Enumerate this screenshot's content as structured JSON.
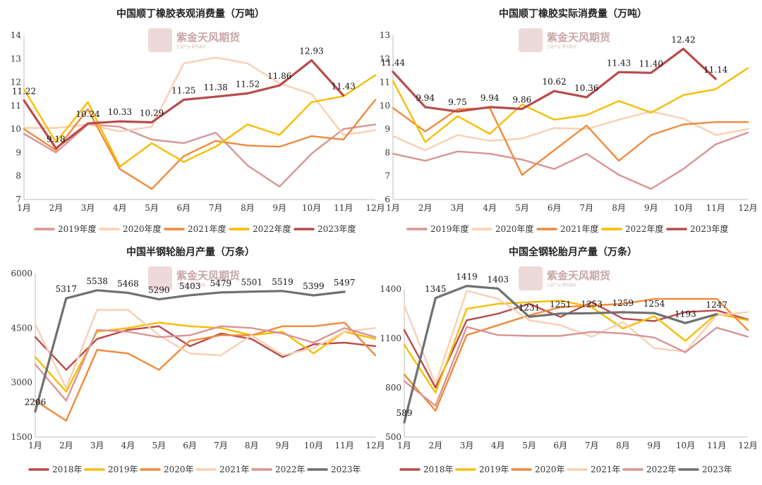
{
  "watermark": {
    "text": "紫金天风期货",
    "subtext": "立足产业  研究驱动"
  },
  "chart_data": [
    {
      "type": "line",
      "title": "中国顺丁橡胶表观消费量（万吨）",
      "categories": [
        "1月",
        "2月",
        "3月",
        "4月",
        "5月",
        "6月",
        "7月",
        "8月",
        "9月",
        "10月",
        "11月",
        "12月"
      ],
      "ylim": [
        7,
        14
      ],
      "yticks": [
        7,
        8,
        9,
        10,
        11,
        12,
        13,
        14
      ],
      "grid": false,
      "legend": "bottom",
      "series": [
        {
          "name": "2019年度",
          "color": "#d99494",
          "values": [
            9.8,
            9.0,
            10.2,
            10.1,
            9.55,
            9.4,
            9.85,
            8.45,
            7.55,
            8.95,
            10.0,
            10.2
          ]
        },
        {
          "name": "2020年度",
          "color": "#f8cfb4",
          "values": [
            10.05,
            10.05,
            10.2,
            9.9,
            10.1,
            12.8,
            13.05,
            12.8,
            11.95,
            11.5,
            9.75,
            9.95
          ]
        },
        {
          "name": "2021年度",
          "color": "#f08a3c",
          "values": [
            10.0,
            9.1,
            10.85,
            8.3,
            7.45,
            8.85,
            9.5,
            9.3,
            9.25,
            9.7,
            9.55,
            11.25
          ]
        },
        {
          "name": "2022年度",
          "color": "#f7bd00",
          "values": [
            11.7,
            9.45,
            11.15,
            8.4,
            9.4,
            8.6,
            9.25,
            10.2,
            9.75,
            11.15,
            11.4,
            12.3
          ]
        },
        {
          "name": "2023年度",
          "color": "#b94a4a",
          "values": [
            11.22,
            9.18,
            10.24,
            10.33,
            10.29,
            11.25,
            11.38,
            11.52,
            11.86,
            12.93,
            11.43,
            null
          ],
          "labels": [
            "11.22",
            "9.18",
            "10.24",
            "10.33",
            "10.29",
            "11.25",
            "11.38",
            "11.52",
            "11.86",
            "12.93",
            "11.43",
            null
          ]
        }
      ]
    },
    {
      "type": "line",
      "title": "中国顺丁橡胶实际消费量（万吨）",
      "categories": [
        "1月",
        "2月",
        "3月",
        "4月",
        "5月",
        "6月",
        "7月",
        "8月",
        "9月",
        "10月",
        "11月",
        "12月"
      ],
      "ylim": [
        6,
        13
      ],
      "yticks": [
        6,
        7,
        8,
        9,
        10,
        11,
        12,
        13
      ],
      "grid": false,
      "legend": "bottom",
      "series": [
        {
          "name": "2019年度",
          "color": "#d99494",
          "values": [
            7.95,
            7.65,
            8.05,
            7.95,
            7.7,
            7.3,
            7.95,
            7.05,
            6.45,
            7.3,
            8.35,
            8.85
          ]
        },
        {
          "name": "2020年度",
          "color": "#f8cfb4",
          "values": [
            8.7,
            8.1,
            8.75,
            8.5,
            8.6,
            9.05,
            9.0,
            9.4,
            9.75,
            9.45,
            8.75,
            9.0
          ]
        },
        {
          "name": "2021年度",
          "color": "#f08a3c",
          "values": [
            9.9,
            8.9,
            9.85,
            9.9,
            7.05,
            8.1,
            9.15,
            7.65,
            8.75,
            9.2,
            9.3,
            9.3
          ]
        },
        {
          "name": "2022年度",
          "color": "#f7bd00",
          "values": [
            11.05,
            8.45,
            9.55,
            8.8,
            10.05,
            9.4,
            9.6,
            10.2,
            9.7,
            10.45,
            10.7,
            11.6
          ]
        },
        {
          "name": "2023年度",
          "color": "#b94a4a",
          "values": [
            11.44,
            9.94,
            9.75,
            9.94,
            9.86,
            10.62,
            10.36,
            11.43,
            11.4,
            12.42,
            11.14,
            null
          ],
          "labels": [
            "11.44",
            "9.94",
            "9.75",
            "9.94",
            "9.86",
            "10.62",
            "10.36",
            "11.43",
            "11.40",
            "12.42",
            "11.14",
            null
          ]
        }
      ]
    },
    {
      "type": "line",
      "title": "中国半钢轮胎月产量（万条）",
      "categories": [
        "1月",
        "2月",
        "3月",
        "4月",
        "5月",
        "6月",
        "7月",
        "8月",
        "9月",
        "10月",
        "11月",
        "12月"
      ],
      "ylim": [
        1500,
        6000
      ],
      "yticks": [
        1500,
        3000,
        4500,
        6000
      ],
      "grid": false,
      "legend": "bottom",
      "series": [
        {
          "name": "2018年",
          "color": "#b94a4a",
          "values": [
            4250,
            3350,
            4200,
            4450,
            4550,
            4000,
            4350,
            4200,
            3700,
            4050,
            4100,
            4000
          ]
        },
        {
          "name": "2019年",
          "color": "#f7bd00",
          "values": [
            3700,
            2750,
            4400,
            4500,
            4650,
            4550,
            4500,
            4300,
            4400,
            3800,
            4400,
            4200
          ]
        },
        {
          "name": "2020年",
          "color": "#f08a3c",
          "values": [
            2500,
            1950,
            3900,
            3800,
            3350,
            4150,
            4300,
            4300,
            4550,
            4550,
            4650,
            3750
          ]
        },
        {
          "name": "2021年",
          "color": "#f8cfb4",
          "values": [
            4600,
            2850,
            5000,
            5000,
            4300,
            3800,
            3750,
            4300,
            3750,
            3950,
            4400,
            4500
          ]
        },
        {
          "name": "2022年",
          "color": "#d99494",
          "values": [
            3500,
            2500,
            4450,
            4400,
            4250,
            4300,
            4550,
            4500,
            4350,
            4100,
            4500,
            4250
          ]
        },
        {
          "name": "2023年",
          "color": "#707070",
          "values": [
            2206,
            5317,
            5538,
            5468,
            5290,
            5403,
            5479,
            5501,
            5519,
            5399,
            5497,
            null
          ],
          "labels": [
            "2206",
            "5317",
            "5538",
            "5468",
            "5290",
            "5403",
            "5479",
            "5501",
            "5519",
            "5399",
            "5497",
            null
          ]
        }
      ]
    },
    {
      "type": "line",
      "title": "中国全钢轮胎月产量（万条）",
      "categories": [
        "1月",
        "2月",
        "3月",
        "4月",
        "5月",
        "6月",
        "7月",
        "8月",
        "9月",
        "10月",
        "11月",
        "12月"
      ],
      "ylim": [
        500,
        1400
      ],
      "yticks": [
        500,
        800,
        1100,
        1400
      ],
      "grid": false,
      "legend": "bottom",
      "series": [
        {
          "name": "2018年",
          "color": "#b94a4a",
          "values": [
            1150,
            800,
            1210,
            1250,
            1310,
            1230,
            1320,
            1220,
            1205,
            1260,
            1270,
            1215
          ]
        },
        {
          "name": "2019年",
          "color": "#f7bd00",
          "values": [
            1060,
            770,
            1280,
            1310,
            1320,
            1330,
            1290,
            1160,
            1235,
            1085,
            1250,
            1210
          ]
        },
        {
          "name": "2020年",
          "color": "#f08a3c",
          "values": [
            880,
            660,
            1120,
            1180,
            1240,
            1290,
            1300,
            1310,
            1340,
            1340,
            1340,
            1150
          ]
        },
        {
          "name": "2021年",
          "color": "#f8cfb4",
          "values": [
            1300,
            820,
            1390,
            1340,
            1210,
            1180,
            1110,
            1200,
            1040,
            1020,
            1240,
            1260
          ]
        },
        {
          "name": "2022年",
          "color": "#d99494",
          "values": [
            840,
            690,
            1170,
            1120,
            1115,
            1115,
            1140,
            1130,
            1105,
            1015,
            1165,
            1110
          ]
        },
        {
          "name": "2023年",
          "color": "#707070",
          "values": [
            589,
            1345,
            1419,
            1403,
            1231,
            1251,
            1253,
            1259,
            1254,
            1193,
            1247,
            null
          ],
          "labels": [
            "589",
            "1345",
            "1419",
            "1403",
            "1231",
            "1251",
            "1253",
            "1259",
            "1254",
            "1193",
            "1247",
            null
          ]
        }
      ]
    }
  ]
}
